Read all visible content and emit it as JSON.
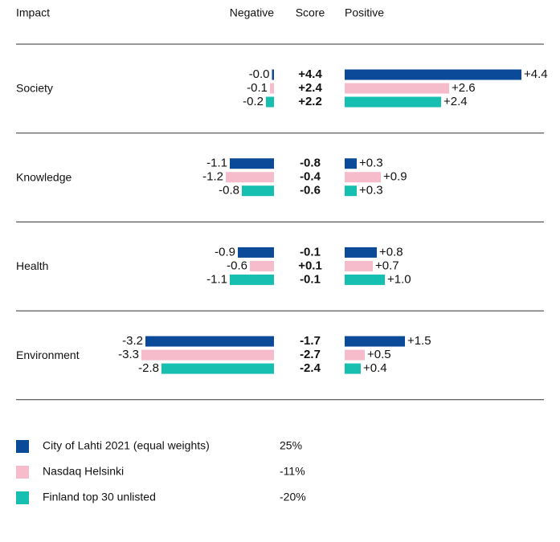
{
  "chart_data": {
    "type": "impact-table",
    "headers": [
      "Impact",
      "Negative",
      "Score",
      "Positive"
    ],
    "categories": [
      "Society",
      "Knowledge",
      "Health",
      "Environment"
    ],
    "series": [
      {
        "name": "City of Lahti 2021 (equal weights)",
        "color": "#0a4a98",
        "negative": [
          0,
          -1.1,
          -0.9,
          -3.2
        ],
        "negative_labels": [
          "-0.0",
          "-1.1",
          "-0.9",
          "-3.2"
        ],
        "score": [
          4.4,
          -0.8,
          -0.1,
          -1.7
        ],
        "score_labels": [
          "+4.4",
          "-0.8",
          "-0.1",
          "-1.7"
        ],
        "positive": [
          4.4,
          0.3,
          0.8,
          1.5
        ],
        "positive_labels": [
          "+4.4",
          "+0.3",
          "+0.8",
          "+1.5"
        ],
        "total": 25,
        "total_label": "25%"
      },
      {
        "name": "Nasdaq Helsinki",
        "color": "#f7bccb",
        "negative": [
          -0.1,
          -1.2,
          -0.6,
          -3.3
        ],
        "negative_labels": [
          "-0.1",
          "-1.2",
          "-0.6",
          "-3.3"
        ],
        "score": [
          2.4,
          -0.4,
          0.1,
          -2.7
        ],
        "score_labels": [
          "+2.4",
          "-0.4",
          "+0.1",
          "-2.7"
        ],
        "positive": [
          2.6,
          0.9,
          0.7,
          0.5
        ],
        "positive_labels": [
          "+2.6",
          "+0.9",
          "+0.7",
          "+0.5"
        ],
        "total": -11,
        "total_label": "-11%"
      },
      {
        "name": "Finland top 30 unlisted",
        "color": "#17bfb0",
        "negative": [
          -0.2,
          -0.8,
          -1.1,
          -2.8
        ],
        "negative_labels": [
          "-0.2",
          "-0.8",
          "-1.1",
          "-2.8"
        ],
        "score": [
          2.2,
          -0.6,
          -0.1,
          -2.4
        ],
        "score_labels": [
          "+2.2",
          "-0.6",
          "-0.1",
          "-2.4"
        ],
        "positive": [
          2.4,
          0.3,
          1.0,
          0.4
        ],
        "positive_labels": [
          "+2.4",
          "+0.3",
          "+1.0",
          "+0.4"
        ],
        "total": -20,
        "total_label": "-20%"
      }
    ]
  }
}
